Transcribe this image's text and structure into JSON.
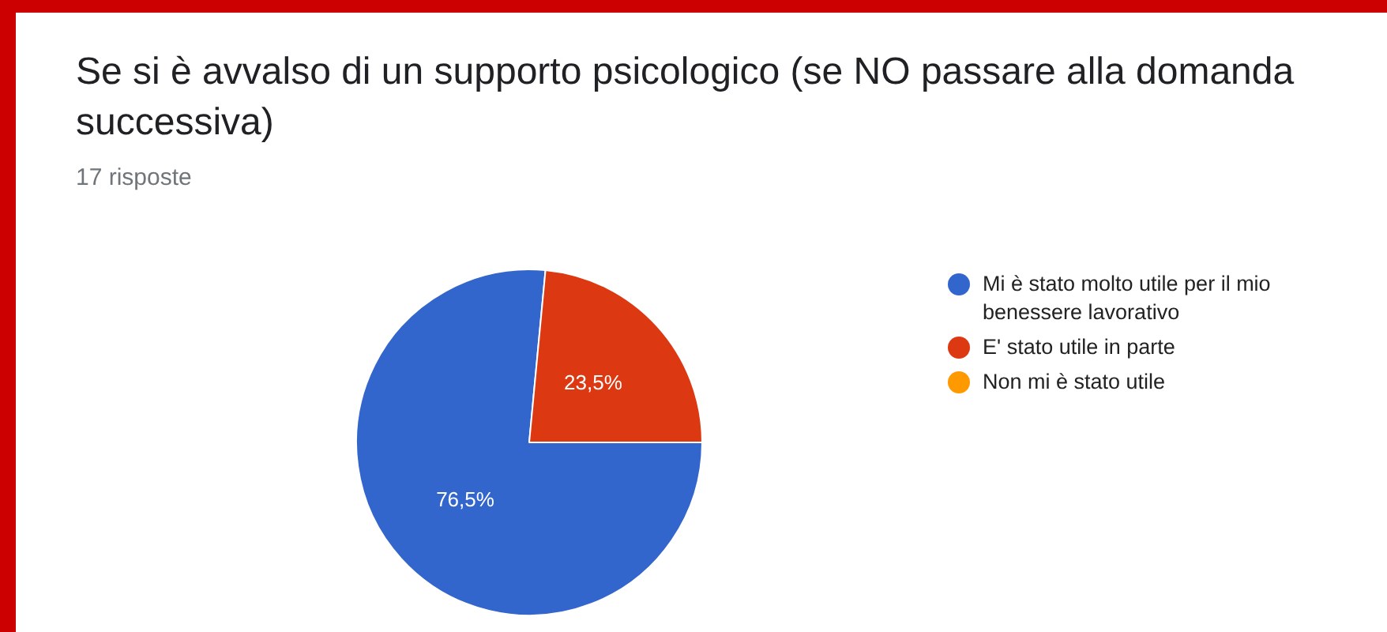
{
  "chart_data": {
    "type": "pie",
    "title": "Se si è avvalso di un supporto psicologico (se NO passare alla domanda successiva)",
    "subtitle": "17 risposte",
    "categories": [
      "Mi è stato molto utile per il mio benessere lavorativo",
      "E' stato utile in parte",
      "Non mi è stato utile"
    ],
    "values": [
      76.5,
      23.5,
      0
    ],
    "colors": [
      "#3366cc",
      "#dc3912",
      "#ff9900"
    ],
    "value_labels": [
      "76,5%",
      "23,5%",
      null
    ],
    "legend": "right"
  }
}
